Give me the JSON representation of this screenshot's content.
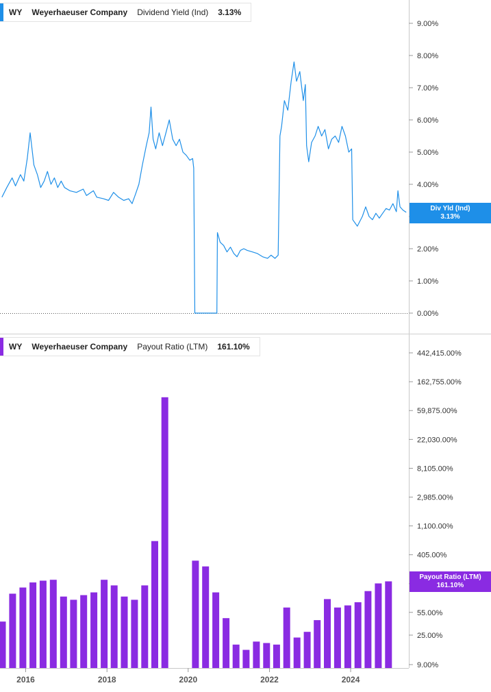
{
  "legend_top": {
    "ticker": "WY",
    "company": "Weyerhaeuser Company",
    "metric": "Dividend Yield (Ind)",
    "value": "3.13%",
    "color": "#1e8fe8"
  },
  "legend_bottom": {
    "ticker": "WY",
    "company": "Weyerhaeuser Company",
    "metric": "Payout Ratio (LTM)",
    "value": "161.10%",
    "color": "#8a2be2"
  },
  "tag_top": {
    "label": "Div Yld (Ind)",
    "value": "3.13%",
    "color": "#1e8fe8"
  },
  "tag_bottom": {
    "label": "Payout Ratio (LTM)",
    "value": "161.10%",
    "color": "#8a2be2"
  },
  "chart_data": [
    {
      "type": "line",
      "series": [
        {
          "name": "Dividend Yield (Ind)",
          "color": "#1e8fe8",
          "points": [
            [
              "2015-06-01",
              3.6
            ],
            [
              "2015-07-15",
              3.9
            ],
            [
              "2015-09-01",
              4.2
            ],
            [
              "2015-10-01",
              3.95
            ],
            [
              "2015-11-15",
              4.3
            ],
            [
              "2015-12-15",
              4.1
            ],
            [
              "2016-01-15",
              4.8
            ],
            [
              "2016-02-10",
              5.6
            ],
            [
              "2016-03-15",
              4.6
            ],
            [
              "2016-04-15",
              4.3
            ],
            [
              "2016-05-15",
              3.9
            ],
            [
              "2016-06-15",
              4.1
            ],
            [
              "2016-07-15",
              4.4
            ],
            [
              "2016-08-15",
              4.0
            ],
            [
              "2016-09-15",
              4.2
            ],
            [
              "2016-10-15",
              3.9
            ],
            [
              "2016-11-15",
              4.1
            ],
            [
              "2016-12-15",
              3.9
            ],
            [
              "2017-02-01",
              3.8
            ],
            [
              "2017-04-01",
              3.75
            ],
            [
              "2017-06-01",
              3.85
            ],
            [
              "2017-07-01",
              3.65
            ],
            [
              "2017-09-01",
              3.8
            ],
            [
              "2017-10-01",
              3.6
            ],
            [
              "2017-12-01",
              3.55
            ],
            [
              "2018-01-15",
              3.5
            ],
            [
              "2018-03-01",
              3.75
            ],
            [
              "2018-04-15",
              3.6
            ],
            [
              "2018-06-01",
              3.5
            ],
            [
              "2018-07-15",
              3.55
            ],
            [
              "2018-08-15",
              3.4
            ],
            [
              "2018-09-15",
              3.7
            ],
            [
              "2018-10-15",
              4.0
            ],
            [
              "2018-11-15",
              4.6
            ],
            [
              "2018-12-20",
              5.2
            ],
            [
              "2019-01-15",
              5.6
            ],
            [
              "2019-02-01",
              6.4
            ],
            [
              "2019-02-20",
              5.4
            ],
            [
              "2019-03-15",
              5.1
            ],
            [
              "2019-04-15",
              5.6
            ],
            [
              "2019-05-15",
              5.2
            ],
            [
              "2019-06-15",
              5.6
            ],
            [
              "2019-07-15",
              6.0
            ],
            [
              "2019-08-15",
              5.4
            ],
            [
              "2019-09-15",
              5.2
            ],
            [
              "2019-10-15",
              5.4
            ],
            [
              "2019-11-15",
              5.0
            ],
            [
              "2019-12-15",
              4.9
            ],
            [
              "2020-01-15",
              4.75
            ],
            [
              "2020-02-10",
              4.8
            ],
            [
              "2020-02-20",
              4.5
            ],
            [
              "2020-03-01",
              0.0
            ],
            [
              "2020-09-15",
              0.0
            ],
            [
              "2020-09-20",
              2.5
            ],
            [
              "2020-10-15",
              2.2
            ],
            [
              "2020-11-15",
              2.1
            ],
            [
              "2020-12-15",
              1.9
            ],
            [
              "2021-01-15",
              2.05
            ],
            [
              "2021-02-15",
              1.85
            ],
            [
              "2021-03-15",
              1.75
            ],
            [
              "2021-04-15",
              1.95
            ],
            [
              "2021-05-15",
              2.0
            ],
            [
              "2021-06-15",
              1.95
            ],
            [
              "2021-08-01",
              1.9
            ],
            [
              "2021-09-15",
              1.85
            ],
            [
              "2021-11-01",
              1.75
            ],
            [
              "2021-12-15",
              1.7
            ],
            [
              "2022-01-15",
              1.8
            ],
            [
              "2022-02-20",
              1.7
            ],
            [
              "2022-03-20",
              1.8
            ],
            [
              "2022-04-05",
              5.5
            ],
            [
              "2022-04-20",
              5.8
            ],
            [
              "2022-05-15",
              6.6
            ],
            [
              "2022-06-15",
              6.3
            ],
            [
              "2022-07-15",
              7.2
            ],
            [
              "2022-08-10",
              7.8
            ],
            [
              "2022-09-01",
              7.2
            ],
            [
              "2022-10-01",
              7.5
            ],
            [
              "2022-11-01",
              6.6
            ],
            [
              "2022-11-20",
              7.1
            ],
            [
              "2022-12-01",
              5.2
            ],
            [
              "2022-12-20",
              4.7
            ],
            [
              "2023-01-15",
              5.3
            ],
            [
              "2023-02-15",
              5.5
            ],
            [
              "2023-03-15",
              5.8
            ],
            [
              "2023-04-15",
              5.5
            ],
            [
              "2023-05-15",
              5.7
            ],
            [
              "2023-06-15",
              5.1
            ],
            [
              "2023-07-15",
              5.4
            ],
            [
              "2023-08-15",
              5.5
            ],
            [
              "2023-09-15",
              5.3
            ],
            [
              "2023-10-15",
              5.8
            ],
            [
              "2023-11-15",
              5.5
            ],
            [
              "2023-12-15",
              5.0
            ],
            [
              "2024-01-10",
              5.1
            ],
            [
              "2024-01-20",
              2.9
            ],
            [
              "2024-03-01",
              2.7
            ],
            [
              "2024-04-15",
              3.0
            ],
            [
              "2024-05-15",
              3.3
            ],
            [
              "2024-06-15",
              3.0
            ],
            [
              "2024-07-15",
              2.9
            ],
            [
              "2024-08-15",
              3.1
            ],
            [
              "2024-09-15",
              2.95
            ],
            [
              "2024-10-15",
              3.1
            ],
            [
              "2024-11-15",
              3.25
            ],
            [
              "2024-12-15",
              3.2
            ],
            [
              "2025-01-15",
              3.4
            ],
            [
              "2025-02-15",
              3.15
            ],
            [
              "2025-03-01",
              3.8
            ],
            [
              "2025-03-20",
              3.3
            ],
            [
              "2025-04-15",
              3.2
            ],
            [
              "2025-05-15",
              3.13
            ]
          ]
        }
      ],
      "y_ticks": [
        "9.00%",
        "8.00%",
        "7.00%",
        "6.00%",
        "5.00%",
        "4.00%",
        "3.00%",
        "2.00%",
        "1.00%",
        "0.00%"
      ],
      "y_tick_values": [
        9,
        8,
        7,
        6,
        5,
        4,
        3,
        2,
        1,
        0
      ],
      "ylim": [
        0,
        9.5
      ],
      "x_range": [
        "2015-05-15",
        "2025-06-01"
      ]
    },
    {
      "type": "bar",
      "scale": "log",
      "series": [
        {
          "name": "Payout Ratio (LTM)",
          "color": "#8a2be2",
          "points": [
            [
              "2015-06-30",
              40
            ],
            [
              "2015-09-30",
              105
            ],
            [
              "2015-12-31",
              130
            ],
            [
              "2016-03-31",
              155
            ],
            [
              "2016-06-30",
              165
            ],
            [
              "2016-09-30",
              170
            ],
            [
              "2016-12-31",
              95
            ],
            [
              "2017-03-31",
              85
            ],
            [
              "2017-06-30",
              100
            ],
            [
              "2017-09-30",
              110
            ],
            [
              "2017-12-31",
              170
            ],
            [
              "2018-03-31",
              140
            ],
            [
              "2018-06-30",
              95
            ],
            [
              "2018-09-30",
              85
            ],
            [
              "2018-12-31",
              140
            ],
            [
              "2019-03-31",
              650
            ],
            [
              "2019-06-30",
              95000
            ],
            [
              "2019-09-30",
              0
            ],
            [
              "2019-12-31",
              0
            ],
            [
              "2020-03-31",
              330
            ],
            [
              "2020-06-30",
              270
            ],
            [
              "2020-09-30",
              110
            ],
            [
              "2020-12-31",
              45
            ],
            [
              "2021-03-31",
              18
            ],
            [
              "2021-06-30",
              15
            ],
            [
              "2021-09-30",
              20
            ],
            [
              "2021-12-31",
              19
            ],
            [
              "2022-03-31",
              18
            ],
            [
              "2022-06-30",
              65
            ],
            [
              "2022-09-30",
              23
            ],
            [
              "2022-12-31",
              28
            ],
            [
              "2023-03-31",
              42
            ],
            [
              "2023-06-30",
              87
            ],
            [
              "2023-09-30",
              65
            ],
            [
              "2023-12-31",
              70
            ],
            [
              "2024-03-31",
              78
            ],
            [
              "2024-06-30",
              115
            ],
            [
              "2024-09-30",
              150
            ],
            [
              "2024-12-31",
              161.1
            ]
          ]
        }
      ],
      "y_ticks": [
        "442,415.00%",
        "162,755.00%",
        "59,875.00%",
        "22,030.00%",
        "8,105.00%",
        "2,985.00%",
        "1,100.00%",
        "405.00%",
        "149.00%",
        "55.00%",
        "25.00%",
        "9.00%"
      ],
      "y_tick_values": [
        442415,
        162755,
        59875,
        22030,
        8105,
        2985,
        1100,
        405,
        149,
        55,
        25,
        9
      ],
      "ylim": [
        9,
        442415
      ],
      "x_ticks": [
        "2016",
        "2018",
        "2020",
        "2022",
        "2024"
      ],
      "x_tick_values": [
        "2016-01-01",
        "2018-01-01",
        "2020-01-01",
        "2022-01-01",
        "2024-01-01"
      ],
      "x_range": [
        "2015-05-15",
        "2025-06-01"
      ]
    }
  ]
}
